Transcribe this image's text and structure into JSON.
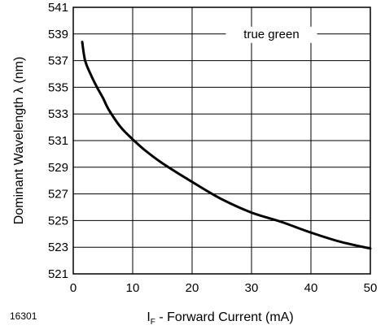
{
  "figure_id": "16301",
  "chart_data": {
    "type": "line",
    "xlabel_main": "I",
    "xlabel_sub": "F",
    "xlabel_rest": " - Forward Current (mA)",
    "ylabel": "Dominant Wavelength  λ (nm)",
    "annotation": "true green",
    "xlim": [
      0,
      50
    ],
    "ylim": [
      521,
      541
    ],
    "x_ticks": [
      0,
      10,
      20,
      30,
      40,
      50
    ],
    "y_ticks": [
      521,
      523,
      525,
      527,
      529,
      531,
      533,
      535,
      537,
      539,
      541
    ],
    "grid": true,
    "series": [
      {
        "x": [
          1.5,
          2,
          3,
          4,
          5,
          6,
          8,
          10,
          12,
          15,
          20,
          25,
          30,
          35,
          40,
          45,
          50
        ],
        "y": [
          538.4,
          537.0,
          535.9,
          535.0,
          534.2,
          533.3,
          532.0,
          531.1,
          530.3,
          529.3,
          527.9,
          526.6,
          525.6,
          524.9,
          524.1,
          523.4,
          522.9
        ]
      }
    ]
  }
}
